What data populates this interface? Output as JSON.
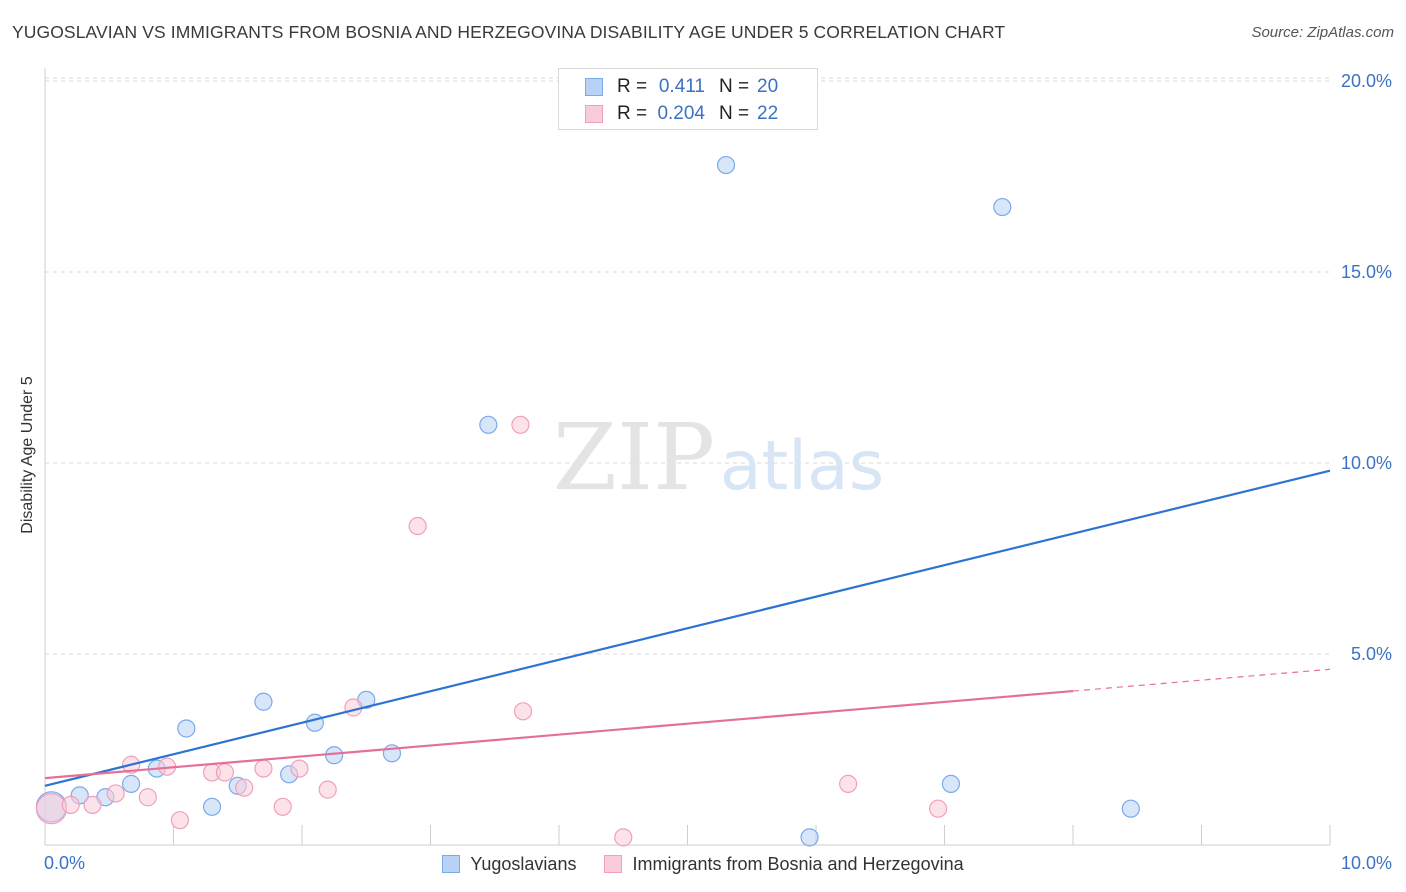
{
  "chart_data": {
    "type": "scatter",
    "title": "YUGOSLAVIAN VS IMMIGRANTS FROM BOSNIA AND HERZEGOVINA DISABILITY AGE UNDER 5 CORRELATION CHART",
    "source": "Source: ZipAtlas.com",
    "ylabel": "Disability Age Under 5",
    "xlabel": "",
    "xlim": [
      0,
      10
    ],
    "ylim": [
      0,
      20
    ],
    "x_tick_labels": [
      "0.0%",
      "10.0%"
    ],
    "y_tick_labels": [
      "5.0%",
      "10.0%",
      "15.0%",
      "20.0%"
    ],
    "y_ticks": [
      5,
      10,
      15,
      20
    ],
    "watermark": {
      "zip": "ZIP",
      "atlas": "atlas"
    },
    "legend": {
      "r_label": "R =",
      "n_label": "N =",
      "rows": [
        {
          "r": "0.411",
          "n": "20"
        },
        {
          "r": "0.204",
          "n": "22"
        }
      ]
    },
    "series": [
      {
        "name": "Yugoslavians",
        "color": "#7aaae8",
        "fill": "#b8d2f5",
        "line_color": "#2d73d2",
        "trend": {
          "x0": 0.0,
          "y0": 1.55,
          "x1": 10.0,
          "y1": 9.8,
          "solid_to": 10.0
        },
        "points": [
          {
            "x": 0.05,
            "y": 1.0,
            "big": true
          },
          {
            "x": 0.27,
            "y": 1.3
          },
          {
            "x": 0.47,
            "y": 1.25
          },
          {
            "x": 0.67,
            "y": 1.6
          },
          {
            "x": 0.87,
            "y": 2.0
          },
          {
            "x": 1.1,
            "y": 3.05
          },
          {
            "x": 1.3,
            "y": 1.0
          },
          {
            "x": 1.5,
            "y": 1.55
          },
          {
            "x": 1.7,
            "y": 3.75
          },
          {
            "x": 1.9,
            "y": 1.85
          },
          {
            "x": 2.1,
            "y": 3.2
          },
          {
            "x": 2.25,
            "y": 2.35
          },
          {
            "x": 2.5,
            "y": 3.8
          },
          {
            "x": 2.7,
            "y": 2.4
          },
          {
            "x": 3.45,
            "y": 11.0
          },
          {
            "x": 5.3,
            "y": 17.8
          },
          {
            "x": 5.95,
            "y": 0.2
          },
          {
            "x": 7.05,
            "y": 1.6
          },
          {
            "x": 7.45,
            "y": 16.7
          },
          {
            "x": 8.45,
            "y": 0.95
          }
        ]
      },
      {
        "name": "Immigrants from Bosnia and Herzegovina",
        "color": "#f0a0b8",
        "fill": "#f9ccd9",
        "line_color": "#e4709a",
        "trend": {
          "x0": 0.0,
          "y0": 1.75,
          "x1": 10.0,
          "y1": 4.6,
          "solid_to": 8.0
        },
        "points": [
          {
            "x": 0.05,
            "y": 0.95,
            "big": true
          },
          {
            "x": 0.2,
            "y": 1.05
          },
          {
            "x": 0.37,
            "y": 1.05
          },
          {
            "x": 0.55,
            "y": 1.35
          },
          {
            "x": 0.67,
            "y": 2.1
          },
          {
            "x": 0.8,
            "y": 1.25
          },
          {
            "x": 0.95,
            "y": 2.05
          },
          {
            "x": 1.05,
            "y": 0.65
          },
          {
            "x": 1.3,
            "y": 1.9
          },
          {
            "x": 1.4,
            "y": 1.9
          },
          {
            "x": 1.55,
            "y": 1.5
          },
          {
            "x": 1.7,
            "y": 2.0
          },
          {
            "x": 1.85,
            "y": 1.0
          },
          {
            "x": 1.98,
            "y": 2.0
          },
          {
            "x": 2.2,
            "y": 1.45
          },
          {
            "x": 2.4,
            "y": 3.6
          },
          {
            "x": 2.9,
            "y": 8.35
          },
          {
            "x": 3.7,
            "y": 11.0
          },
          {
            "x": 3.72,
            "y": 3.5
          },
          {
            "x": 4.5,
            "y": 0.2
          },
          {
            "x": 6.25,
            "y": 1.6
          },
          {
            "x": 6.95,
            "y": 0.95
          }
        ]
      }
    ]
  }
}
